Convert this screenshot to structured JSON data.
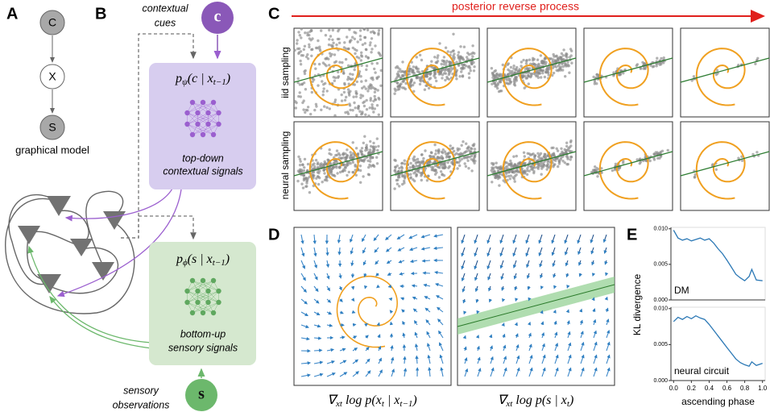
{
  "panel_labels": [
    "A",
    "B",
    "C",
    "D",
    "E"
  ],
  "panel_a": {
    "nodes": [
      "C",
      "X",
      "S"
    ],
    "caption": "graphical model"
  },
  "panel_b": {
    "context_cue": {
      "label": "c",
      "caption": [
        "contextual",
        "cues"
      ]
    },
    "top_box": {
      "formula": [
        "p",
        "ψ",
        "(c | x",
        "t−1",
        ")"
      ],
      "caption": [
        "top-down",
        "contextual signals"
      ]
    },
    "bottom_box": {
      "formula": [
        "p",
        "ϕ",
        "(s | x",
        "t−1",
        ")"
      ],
      "caption": [
        "bottom-up",
        "sensory signals"
      ]
    },
    "sensory_input": {
      "label": "s",
      "caption": [
        "sensory",
        "observations"
      ]
    }
  },
  "panel_c": {
    "title": "posterior reverse process",
    "rows": [
      "iid sampling",
      "neural sampling"
    ]
  },
  "panel_d": {
    "captions": [
      [
        "∇",
        "xt",
        " log p(x",
        "t",
        " | x",
        "t−1",
        ")"
      ],
      [
        "∇",
        "xt",
        " log p(s | x",
        "t",
        ")"
      ]
    ]
  },
  "chart_data": [
    {
      "type": "line",
      "ylabel": "KL divergence",
      "label": "DM",
      "color": "#2b78b5",
      "x": [
        0,
        0.05,
        0.1,
        0.15,
        0.2,
        0.25,
        0.3,
        0.35,
        0.4,
        0.45,
        0.5,
        0.55,
        0.6,
        0.65,
        0.7,
        0.75,
        0.8,
        0.85,
        0.88,
        0.93,
        1.0
      ],
      "values": [
        0.0098,
        0.0087,
        0.0084,
        0.0086,
        0.0083,
        0.0085,
        0.0087,
        0.0084,
        0.0086,
        0.008,
        0.0072,
        0.0065,
        0.0056,
        0.0046,
        0.0036,
        0.0031,
        0.0027,
        0.0033,
        0.0043,
        0.0028,
        0.0027
      ],
      "xlim": [
        -0.03,
        1.03
      ],
      "ylim": [
        0,
        0.0102
      ],
      "yticks": [
        {
          "value": 0,
          "label": "0.000"
        },
        {
          "value": 0.005,
          "label": "0.005"
        },
        {
          "value": 0.01,
          "label": "0.010"
        }
      ]
    },
    {
      "type": "line",
      "xlabel": "ascending phase",
      "label": "neural circuit",
      "color": "#2b78b5",
      "x": [
        0,
        0.05,
        0.1,
        0.15,
        0.2,
        0.25,
        0.3,
        0.35,
        0.4,
        0.45,
        0.5,
        0.55,
        0.6,
        0.65,
        0.7,
        0.75,
        0.8,
        0.85,
        0.88,
        0.93,
        1.0
      ],
      "values": [
        0.0082,
        0.0088,
        0.0085,
        0.0089,
        0.0086,
        0.009,
        0.0087,
        0.0085,
        0.0078,
        0.007,
        0.0062,
        0.0054,
        0.0046,
        0.0038,
        0.003,
        0.0025,
        0.0022,
        0.002,
        0.0026,
        0.0021,
        0.0024
      ],
      "xlim": [
        -0.03,
        1.03
      ],
      "ylim": [
        0,
        0.0102
      ],
      "yticks": [
        {
          "value": 0,
          "label": "0.000"
        },
        {
          "value": 0.005,
          "label": "0.005"
        },
        {
          "value": 0.01,
          "label": "0.010"
        }
      ],
      "xticks": [
        {
          "value": 0,
          "label": "0.0"
        },
        {
          "value": 0.2,
          "label": "0.2"
        },
        {
          "value": 0.4,
          "label": "0.4"
        },
        {
          "value": 0.6,
          "label": "0.6"
        },
        {
          "value": 0.8,
          "label": "0.8"
        },
        {
          "value": 1,
          "label": "1.0"
        }
      ]
    }
  ]
}
